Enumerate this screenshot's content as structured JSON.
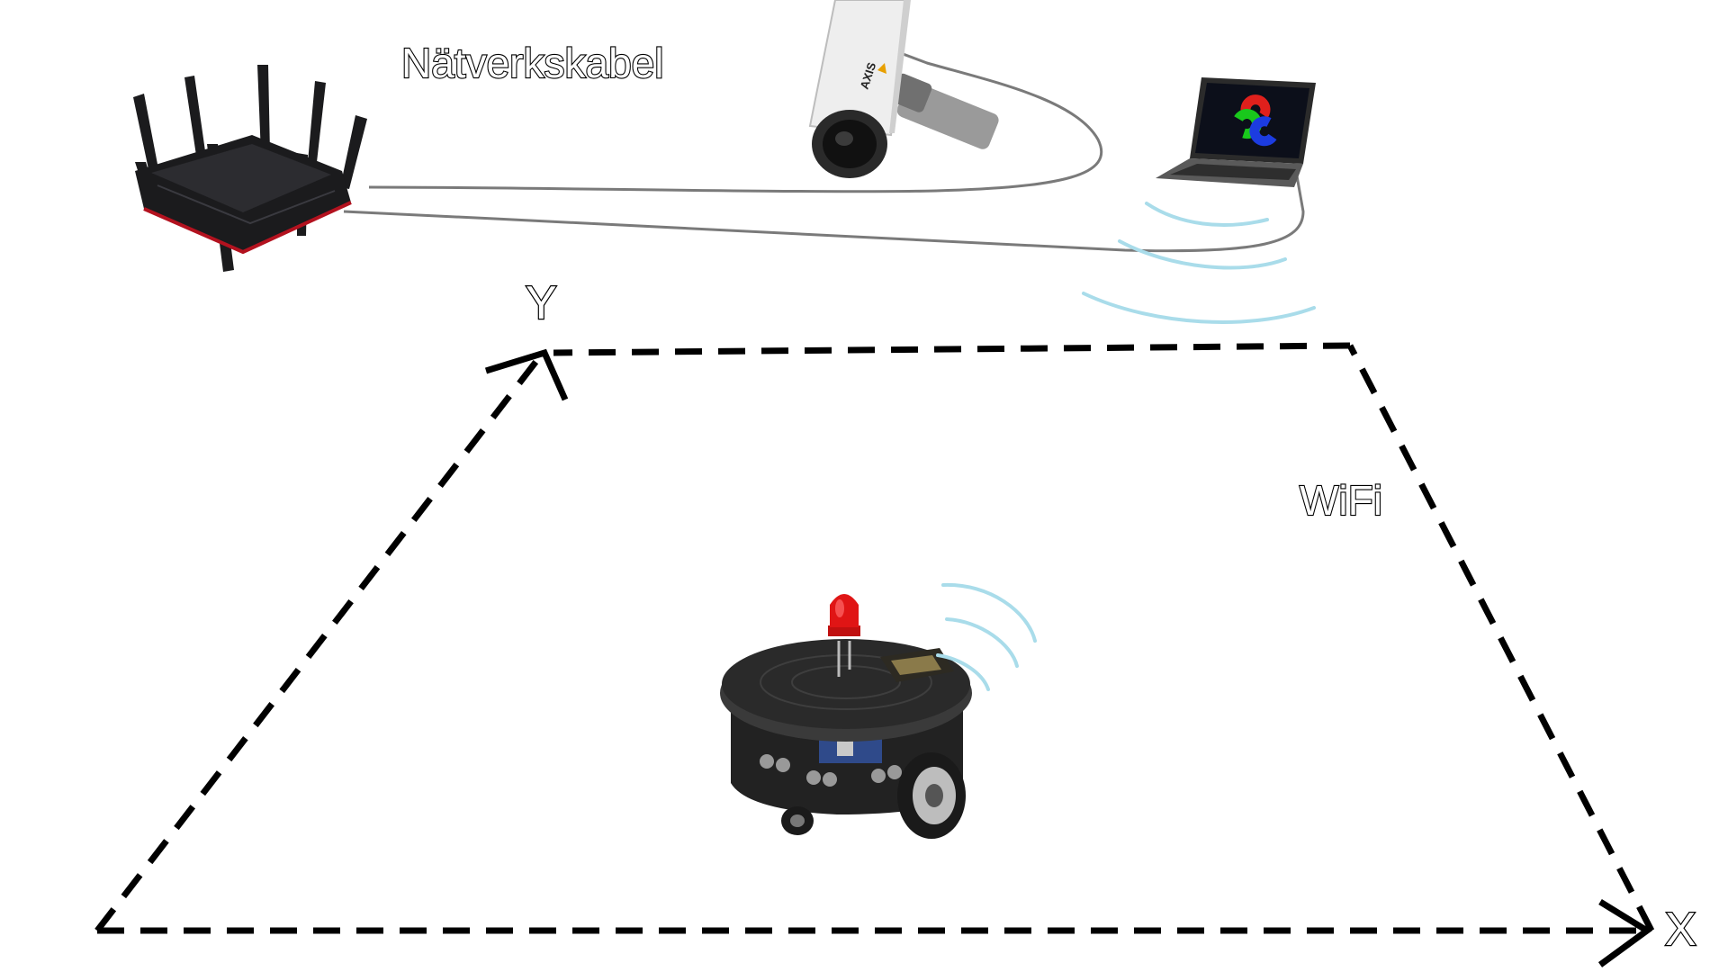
{
  "labels": {
    "network_cable": "Nätverkskabel",
    "wifi": "WiFi",
    "axis_x": "X",
    "axis_y": "Y"
  },
  "colors": {
    "wifi_waves": "#a9dcea",
    "cable": "#7a7a7a",
    "dashed_border": "#000000",
    "router_body": "#1b1b1d",
    "router_accent": "#b3121f",
    "robot_body": "#2a2a2a",
    "led": "#e01515",
    "camera_body": "#eeeeee",
    "laptop_screen": "#0c0f1a",
    "opencv_red": "#e0201c",
    "opencv_green": "#19c81c",
    "opencv_blue": "#1c3ce0"
  },
  "devices": {
    "router": "router-icon",
    "camera": "ip-camera-icon",
    "laptop": "laptop-icon",
    "camera_brand": "AXIS",
    "robot": "mobile-robot-icon"
  }
}
